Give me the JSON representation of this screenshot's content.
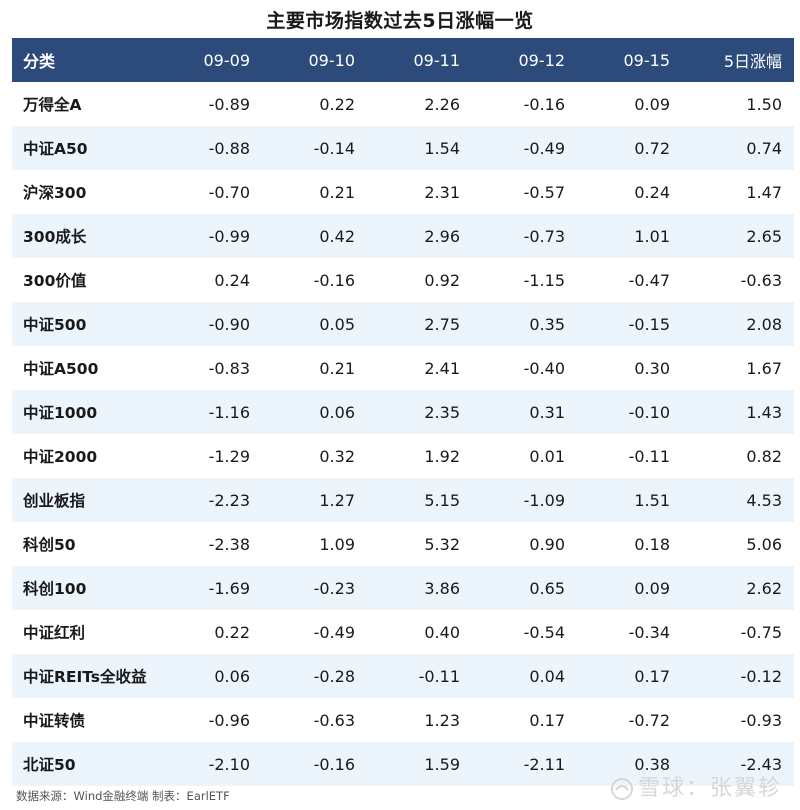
{
  "chart_data": {
    "type": "table",
    "title": "主要市场指数过去5日涨幅一览",
    "columns": [
      "分类",
      "09-09",
      "09-10",
      "09-11",
      "09-12",
      "09-15",
      "5日涨幅"
    ],
    "rows": [
      [
        "万得全A",
        "-0.89",
        "0.22",
        "2.26",
        "-0.16",
        "0.09",
        "1.50"
      ],
      [
        "中证A50",
        "-0.88",
        "-0.14",
        "1.54",
        "-0.49",
        "0.72",
        "0.74"
      ],
      [
        "沪深300",
        "-0.70",
        "0.21",
        "2.31",
        "-0.57",
        "0.24",
        "1.47"
      ],
      [
        "300成长",
        "-0.99",
        "0.42",
        "2.96",
        "-0.73",
        "1.01",
        "2.65"
      ],
      [
        "300价值",
        "0.24",
        "-0.16",
        "0.92",
        "-1.15",
        "-0.47",
        "-0.63"
      ],
      [
        "中证500",
        "-0.90",
        "0.05",
        "2.75",
        "0.35",
        "-0.15",
        "2.08"
      ],
      [
        "中证A500",
        "-0.83",
        "0.21",
        "2.41",
        "-0.40",
        "0.30",
        "1.67"
      ],
      [
        "中证1000",
        "-1.16",
        "0.06",
        "2.35",
        "0.31",
        "-0.10",
        "1.43"
      ],
      [
        "中证2000",
        "-1.29",
        "0.32",
        "1.92",
        "0.01",
        "-0.11",
        "0.82"
      ],
      [
        "创业板指",
        "-2.23",
        "1.27",
        "5.15",
        "-1.09",
        "1.51",
        "4.53"
      ],
      [
        "科创50",
        "-2.38",
        "1.09",
        "5.32",
        "0.90",
        "0.18",
        "5.06"
      ],
      [
        "科创100",
        "-1.69",
        "-0.23",
        "3.86",
        "0.65",
        "0.09",
        "2.62"
      ],
      [
        "中证红利",
        "0.22",
        "-0.49",
        "0.40",
        "-0.54",
        "-0.34",
        "-0.75"
      ],
      [
        "中证REITs全收益",
        "0.06",
        "-0.28",
        "-0.11",
        "0.04",
        "0.17",
        "-0.12"
      ],
      [
        "中证转债",
        "-0.96",
        "-0.63",
        "1.23",
        "0.17",
        "-0.72",
        "-0.93"
      ],
      [
        "北证50",
        "-2.10",
        "-0.16",
        "1.59",
        "-2.11",
        "0.38",
        "-2.43"
      ]
    ],
    "header_color": "#2c4b7b",
    "stripe_color": "#ecf4fc"
  },
  "footer": {
    "source": "数据来源：Wind金融终端 制表：EarlETF",
    "watermark": "雪球：张翼轸"
  }
}
